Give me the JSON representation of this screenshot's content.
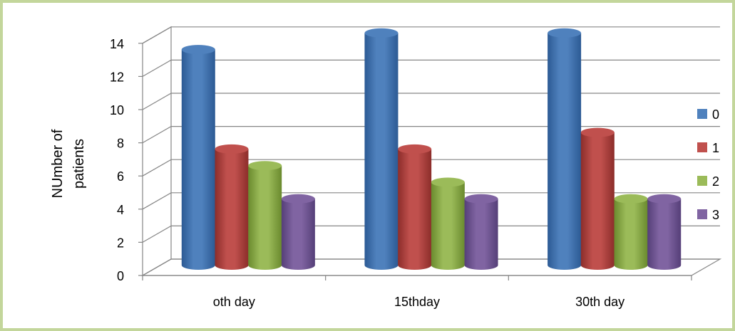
{
  "chart_data": {
    "type": "bar",
    "categories": [
      "oth day",
      "15thday",
      "30th day"
    ],
    "series": [
      {
        "name": "0",
        "values": [
          13,
          14,
          14
        ]
      },
      {
        "name": "1",
        "values": [
          7,
          7,
          8
        ]
      },
      {
        "name": "2",
        "values": [
          6,
          5,
          4
        ]
      },
      {
        "name": "3",
        "values": [
          4,
          4,
          4
        ]
      }
    ],
    "title": "",
    "xlabel": "",
    "ylabel_lines": [
      "NUmber of",
      "patients"
    ],
    "ylim": [
      0,
      14
    ],
    "yticks": [
      0,
      2,
      4,
      6,
      8,
      10,
      12,
      14
    ],
    "grid": true,
    "legend_position": "right",
    "colors": [
      "#4f81bd",
      "#c0504d",
      "#9bbb59",
      "#8064a2"
    ],
    "colors_dark": [
      "#2c5a94",
      "#8c2d2a",
      "#6a8a2e",
      "#553f78"
    ]
  }
}
